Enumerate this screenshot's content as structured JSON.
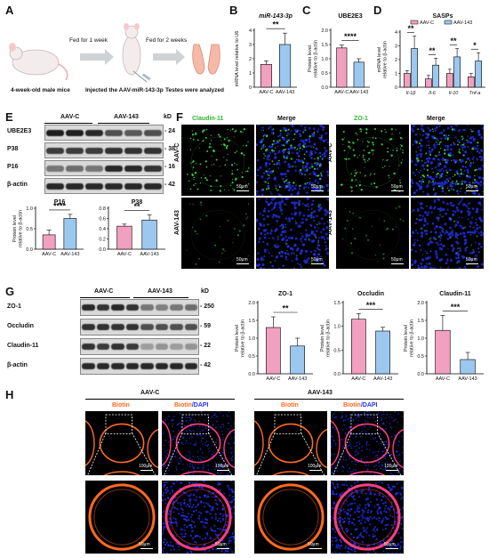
{
  "colors": {
    "pink": "#f2a0bf",
    "blue": "#9cc8ef",
    "green": "#3ee04a",
    "orange": "#ff6a1f",
    "dapi": "#2233ff"
  },
  "panelA": {
    "label": "A",
    "step1": "Fed for 1 week",
    "step2": "Fed for 2 weeks",
    "cap1": "4-week-old male mice",
    "cap2": "Injected the AAV-miR-143-3p",
    "cap3": "Testes were analyzed"
  },
  "panelB": {
    "label": "B",
    "chart_data": {
      "type": "bar",
      "title": "miR-143-3p",
      "ylabel": "mRNA level relative to U6",
      "categories": [
        "AAV-C",
        "AAV-143"
      ],
      "values": [
        1.6,
        3.0
      ],
      "errors": [
        0.25,
        0.8
      ],
      "ylim": [
        0,
        4
      ],
      "yticks": [
        "0",
        "1",
        "2",
        "3",
        "4"
      ],
      "sig": "**"
    }
  },
  "panelC": {
    "label": "C",
    "chart_data": {
      "type": "bar",
      "title": "UBE2E3",
      "ylabel": "Protein level relative to β-actin",
      "categories": [
        "AAV-C",
        "AAV-143"
      ],
      "values": [
        1.38,
        0.88
      ],
      "errors": [
        0.1,
        0.12
      ],
      "ylim": [
        0,
        2.0
      ],
      "yticks": [
        "0.0",
        "0.5",
        "1.0",
        "1.5",
        "2.0"
      ],
      "sig": "****"
    }
  },
  "panelD": {
    "label": "D",
    "chart_data": {
      "type": "bar",
      "title": "SASPs",
      "ylabel": "mRNA level relative to β-actin",
      "categories": [
        "Il-1β",
        "Il-6",
        "Il-10",
        "Tnf-a"
      ],
      "series": [
        {
          "name": "AAV-C",
          "values": [
            1.0,
            0.6,
            1.0,
            0.75
          ]
        },
        {
          "name": "AAV-143",
          "values": [
            2.8,
            1.6,
            2.2,
            1.9
          ]
        }
      ],
      "errors": [
        [
          0.2,
          0.25,
          0.3,
          0.25
        ],
        [
          0.9,
          0.5,
          0.6,
          0.6
        ]
      ],
      "ylim": [
        0,
        4
      ],
      "yticks": [
        "0",
        "1",
        "2",
        "3",
        "4"
      ],
      "sig": [
        "**",
        "**",
        "**",
        "*"
      ]
    }
  },
  "panelE": {
    "label": "E",
    "group_c": "AAV-C",
    "group_143": "AAV-143",
    "kd": "kD",
    "blots": [
      {
        "name": "UBE2E3",
        "kd": "24"
      },
      {
        "name": "P38",
        "kd": "38"
      },
      {
        "name": "P16",
        "kd": "16"
      },
      {
        "name": "β-actin",
        "kd": "42"
      }
    ],
    "charts": [
      {
        "type": "bar",
        "title": "P16",
        "ylabel": "Protein level relative to β-actin",
        "categories": [
          "AAV-C",
          "AAV-143"
        ],
        "values": [
          0.35,
          0.75
        ],
        "errors": [
          0.12,
          0.1
        ],
        "ylim": [
          0,
          1.0
        ],
        "yticks": [
          "0.0",
          "0.5",
          "1.0"
        ],
        "sig": "****"
      },
      {
        "type": "bar",
        "title": "P38",
        "ylabel": "",
        "categories": [
          "AAV-C",
          "AAV-143"
        ],
        "values": [
          0.45,
          0.57
        ],
        "errors": [
          0.04,
          0.1
        ],
        "ylim": [
          0,
          0.8
        ],
        "yticks": [
          "0.0",
          "0.2",
          "0.4",
          "0.6",
          "0.8"
        ],
        "sig": "**"
      }
    ]
  },
  "panelF": {
    "label": "F",
    "stain1": "Claudin-11",
    "stain2": "ZO-1",
    "merge": "Merge",
    "row1": "AAV-C",
    "row2": "AAV-143",
    "scale": "50μm"
  },
  "panelG": {
    "label": "G",
    "group_c": "AAV-C",
    "group_143": "AAV-143",
    "kd": "kD",
    "blots": [
      {
        "name": "ZO-1",
        "kd": "250"
      },
      {
        "name": "Occludin",
        "kd": "59"
      },
      {
        "name": "Claudin-11",
        "kd": "22"
      },
      {
        "name": "β-actin",
        "kd": "42"
      }
    ],
    "charts": [
      {
        "type": "bar",
        "title": "ZO-1",
        "ylabel": "Protein level relative to β-actin",
        "categories": [
          "AAV-C",
          "AAV-143"
        ],
        "values": [
          1.3,
          0.78
        ],
        "errors": [
          0.3,
          0.22
        ],
        "ylim": [
          0,
          2.0
        ],
        "yticks": [
          "0.0",
          "0.5",
          "1.0",
          "1.5",
          "2.0"
        ],
        "sig": "**"
      },
      {
        "type": "bar",
        "title": "Occludin",
        "ylabel": "Protein level relative to β-actin",
        "categories": [
          "AAV-C",
          "AAV-143"
        ],
        "values": [
          1.15,
          0.9
        ],
        "errors": [
          0.12,
          0.08
        ],
        "ylim": [
          0,
          1.5
        ],
        "yticks": [
          "0.0",
          "0.5",
          "1.0",
          "1.5"
        ],
        "sig": "***"
      },
      {
        "type": "bar",
        "title": "Claudin-11",
        "ylabel": "Protein level relative to β-actin",
        "categories": [
          "AAV-C",
          "AAV-143"
        ],
        "values": [
          1.22,
          0.4
        ],
        "errors": [
          0.42,
          0.2
        ],
        "ylim": [
          0,
          2.0
        ],
        "yticks": [
          "0.0",
          "0.5",
          "1.0",
          "1.5",
          "2.0"
        ],
        "sig": "***"
      }
    ]
  },
  "panelH": {
    "label": "H",
    "group_c": "AAV-C",
    "group_143": "AAV-143",
    "biotin": "Biotin",
    "dapi": "/DAPI",
    "scale_big": "100μm",
    "scale_small": "50μm"
  }
}
